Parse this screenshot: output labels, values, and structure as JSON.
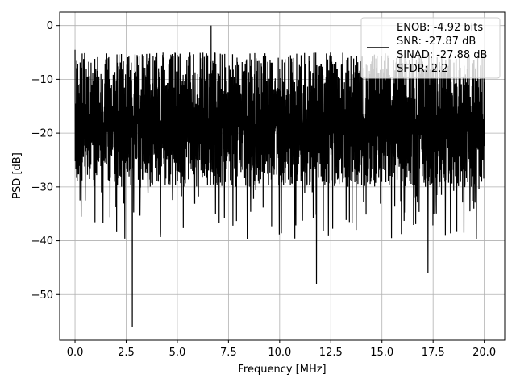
{
  "chart_data": {
    "type": "line",
    "title": "",
    "xlabel": "Frequency [MHz]",
    "ylabel": "PSD [dB]",
    "xlim": [
      -0.75,
      21.0
    ],
    "ylim": [
      -58.5,
      2.5
    ],
    "xticks": [
      0.0,
      2.5,
      5.0,
      7.5,
      10.0,
      12.5,
      15.0,
      17.5,
      20.0
    ],
    "xtick_labels": [
      "0.0",
      "2.5",
      "5.0",
      "7.5",
      "10.0",
      "12.5",
      "15.0",
      "17.5",
      "20.0"
    ],
    "yticks": [
      0,
      -10,
      -20,
      -30,
      -40,
      -50
    ],
    "ytick_labels": [
      "0",
      "−10",
      "−20",
      "−30",
      "−40",
      "−50"
    ],
    "grid": true,
    "legend_position": "top-right",
    "line_color": "#000000",
    "x_range": [
      0.0,
      20.0
    ],
    "noise_band_db": [
      -30,
      -5
    ],
    "notable_points": [
      {
        "x": 0.0,
        "y": -4.5
      },
      {
        "x": 2.8,
        "y": -56
      },
      {
        "x": 6.65,
        "y": 0
      },
      {
        "x": 11.8,
        "y": -48
      },
      {
        "x": 17.25,
        "y": -46
      }
    ],
    "series": [
      {
        "name": "ENOB: -4.92 bits\nSNR: -27.87 dB\nSINAD: -27.88 dB\nSFDR: 2.2",
        "legend_lines": [
          "ENOB: -4.92 bits",
          "SNR: -27.87 dB",
          "SINAD: -27.88 dB",
          "SFDR: 2.2"
        ]
      }
    ]
  }
}
